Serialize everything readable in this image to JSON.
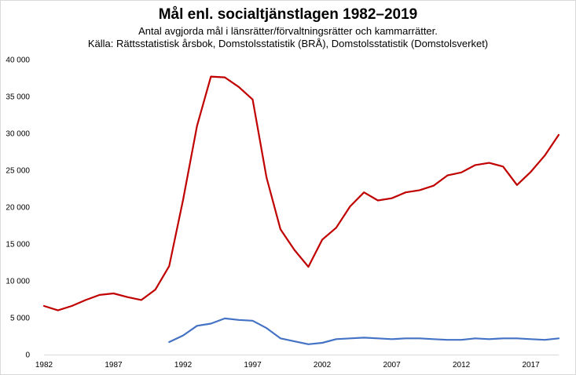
{
  "chart_data": {
    "type": "line",
    "title": "Mål enl. socialtjänstlagen 1982–2019",
    "subtitle_lines": [
      "Antal avgjorda mål i länsrätter/förvaltningsrätter  och kammarrätter.",
      "Källa: Rättsstatistisk årsbok, Domstolsstatistik (BRÅ), Domstolsstatistik (Domstolsverket)"
    ],
    "x": [
      1982,
      1983,
      1984,
      1985,
      1986,
      1987,
      1988,
      1989,
      1990,
      1991,
      1992,
      1993,
      1994,
      1995,
      1996,
      1997,
      1998,
      1999,
      2000,
      2001,
      2002,
      2003,
      2004,
      2005,
      2006,
      2007,
      2008,
      2009,
      2010,
      2011,
      2012,
      2013,
      2014,
      2015,
      2016,
      2017,
      2018,
      2019
    ],
    "x_tick_labels": [
      "1982",
      "1987",
      "1992",
      "1997",
      "2002",
      "2007",
      "2012",
      "2017"
    ],
    "y_tick_labels": [
      "0",
      "5 000",
      "10 000",
      "15 000",
      "20 000",
      "25 000",
      "30 000",
      "35 000",
      "40 000"
    ],
    "ylim": [
      0,
      40000
    ],
    "xlim": [
      1982,
      2019
    ],
    "series": [
      {
        "color": "#c00000",
        "values": [
          6600,
          6000,
          6600,
          7400,
          8100,
          8300,
          7800,
          7400,
          8800,
          12000,
          21000,
          31000,
          37700,
          37600,
          36300,
          34600,
          24000,
          17000,
          14200,
          11900,
          15600,
          17200,
          20100,
          22000,
          20900,
          21200,
          22000,
          22300,
          22900,
          24300,
          24700,
          25700,
          26000,
          25500,
          23000,
          24800,
          27000,
          29800
        ]
      },
      {
        "color": "#4472c4",
        "values": [
          null,
          null,
          null,
          null,
          null,
          null,
          null,
          null,
          null,
          1700,
          2600,
          3900,
          4200,
          4900,
          4700,
          4600,
          3600,
          2200,
          1800,
          1400,
          1600,
          2100,
          2200,
          2300,
          2200,
          2100,
          2200,
          2200,
          2100,
          2000,
          2000,
          2200,
          2100,
          2200,
          2200,
          2100,
          2000,
          2200
        ]
      }
    ],
    "grid": false,
    "legend": "none"
  }
}
